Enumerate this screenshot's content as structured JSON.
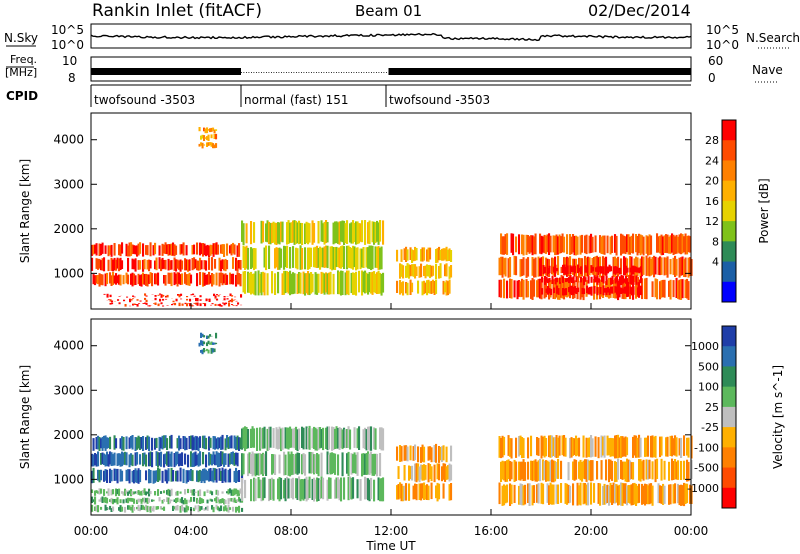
{
  "header": {
    "title": "Rankin Inlet (fitACF)",
    "beam": "Beam 01",
    "date": "02/Dec/2014"
  },
  "noise_panel": {
    "left_label": "N.Sky",
    "left_ticks": [
      "10^5",
      "10^0"
    ],
    "right_ticks": [
      "10^5",
      "10^0"
    ],
    "right_label": "N.Search"
  },
  "freq_panel": {
    "left_label_1": "Freq.",
    "left_label_2": "[MHz]",
    "left_ticks": [
      "10",
      "8"
    ],
    "right_ticks": [
      "60",
      "0"
    ],
    "right_label": "Nave"
  },
  "cpid_panel": {
    "label": "CPID",
    "segments": [
      {
        "name": "twofsound -3503",
        "start_hour": 0,
        "end_hour": 6.0
      },
      {
        "name": "normal (fast) 151",
        "start_hour": 6.0,
        "end_hour": 11.8
      },
      {
        "name": "twofsound -3503",
        "start_hour": 11.8,
        "end_hour": 24
      }
    ]
  },
  "power_panel": {
    "ylabel": "Slant Range [km]",
    "yticks": [
      "1000",
      "2000",
      "3000",
      "4000"
    ],
    "colorbar_label": "Power [dB]",
    "colorbar_ticks": [
      "28",
      "24",
      "20",
      "16",
      "12",
      "8",
      "4"
    ],
    "colorbar_colors": [
      "#ff0000",
      "#ff4b00",
      "#ff8000",
      "#ffb000",
      "#e6d200",
      "#7fc21a",
      "#2e8b57",
      "#1b5fa6",
      "#0000ff"
    ]
  },
  "velocity_panel": {
    "ylabel": "Slant Range [km]",
    "yticks": [
      "1000",
      "2000",
      "3000",
      "4000"
    ],
    "colorbar_label": "Velocity [m s^-1]",
    "colorbar_ticks": [
      "1000",
      "500",
      "100",
      "25",
      "-25",
      "-100",
      "-500",
      "-1000"
    ],
    "colorbar_colors": [
      "#1f3ea8",
      "#2a6fb0",
      "#2e8b57",
      "#5cb85c",
      "#bfbfbf",
      "#ffb000",
      "#ff8000",
      "#ff4b00",
      "#ff0000"
    ]
  },
  "xaxis": {
    "label": "Time UT",
    "ticks": [
      "00:00",
      "04:00",
      "08:00",
      "12:00",
      "16:00",
      "20:00",
      "00:00"
    ]
  },
  "chart_data": {
    "type": "heatmap",
    "title": "Rankin Inlet (fitACF)",
    "subtitle": "Beam 01",
    "date": "02/Dec/2014",
    "xlabel": "Time UT",
    "ylabel": "Slant Range [km]",
    "xlim": [
      0,
      24
    ],
    "ylim": [
      200,
      4600
    ],
    "panels": [
      {
        "name": "Power",
        "unit": "dB",
        "colorbar_range": [
          0,
          30
        ],
        "regions": [
          {
            "t0": 0.0,
            "t1": 6.0,
            "r0": 700,
            "r1": 1700,
            "value": 26
          },
          {
            "t0": 0.5,
            "t1": 6.0,
            "r0": 250,
            "r1": 550,
            "value": 28
          },
          {
            "t0": 6.0,
            "t1": 11.7,
            "r0": 500,
            "r1": 2200,
            "value": 14
          },
          {
            "t0": 12.2,
            "t1": 14.4,
            "r0": 500,
            "r1": 1600,
            "value": 18
          },
          {
            "t0": 16.3,
            "t1": 24.0,
            "r0": 400,
            "r1": 1900,
            "value": 24
          },
          {
            "t0": 18.0,
            "t1": 22.0,
            "r0": 500,
            "r1": 1200,
            "value": 30
          },
          {
            "t0": 4.3,
            "t1": 5.0,
            "r0": 3800,
            "r1": 4300,
            "value": 20
          }
        ]
      },
      {
        "name": "Velocity",
        "unit": "m s^-1",
        "colorbar_range": [
          -1000,
          1000
        ],
        "regions": [
          {
            "t0": 0.0,
            "t1": 6.0,
            "r0": 900,
            "r1": 2000,
            "value": 700
          },
          {
            "t0": 0.0,
            "t1": 6.0,
            "r0": 250,
            "r1": 800,
            "value": 200
          },
          {
            "t0": 6.0,
            "t1": 11.7,
            "r0": 500,
            "r1": 2200,
            "value": 200
          },
          {
            "t0": 12.2,
            "t1": 14.4,
            "r0": 500,
            "r1": 1800,
            "value": -300
          },
          {
            "t0": 16.3,
            "t1": 24.0,
            "r0": 400,
            "r1": 2000,
            "value": -300
          },
          {
            "t0": 4.3,
            "t1": 5.0,
            "r0": 3800,
            "r1": 4300,
            "value": 500
          }
        ]
      }
    ]
  }
}
